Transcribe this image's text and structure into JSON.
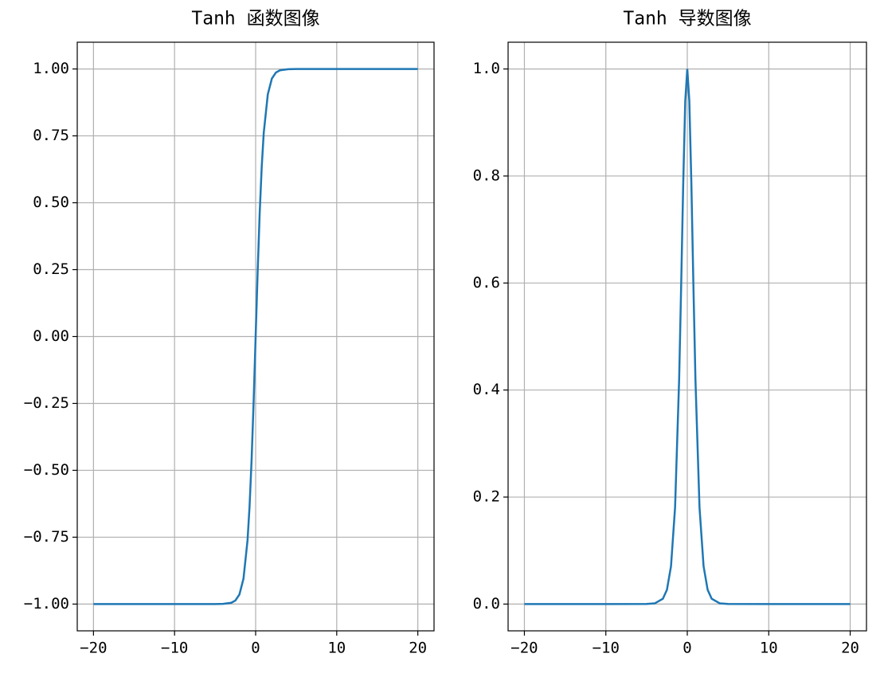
{
  "chart_data": [
    {
      "type": "line",
      "title": "Tanh 函数图像",
      "x": [
        -20,
        -15,
        -10,
        -5,
        -4,
        -3,
        -2.5,
        -2,
        -1.5,
        -1,
        -0.75,
        -0.5,
        -0.25,
        0,
        0.25,
        0.5,
        0.75,
        1,
        1.5,
        2,
        2.5,
        3,
        4,
        5,
        10,
        15,
        20
      ],
      "series": [
        {
          "color": "#1f77b4",
          "values": [
            -1,
            -1,
            -1,
            -0.9999,
            -0.9993,
            -0.9951,
            -0.9866,
            -0.964,
            -0.9051,
            -0.7616,
            -0.6351,
            -0.4621,
            -0.2449,
            0,
            0.2449,
            0.4621,
            0.6351,
            0.7616,
            0.9051,
            0.964,
            0.9866,
            0.9951,
            0.9993,
            0.9999,
            1,
            1,
            1
          ]
        }
      ],
      "xlim": [
        -22,
        22
      ],
      "xticks": [
        {
          "value": -20,
          "label": "−20"
        },
        {
          "value": -10,
          "label": "−10"
        },
        0,
        10,
        20
      ],
      "ylim": [
        -1.1,
        1.1
      ],
      "yticks": [
        {
          "value": -1,
          "label": "−1.00"
        },
        {
          "value": -0.75,
          "label": "−0.75"
        },
        {
          "value": -0.5,
          "label": "−0.50"
        },
        {
          "value": -0.25,
          "label": "−0.25"
        },
        {
          "value": 0,
          "label": "0.00"
        },
        0.25,
        {
          "value": 0.5,
          "label": "0.50"
        },
        0.75,
        {
          "value": 1,
          "label": "1.00"
        }
      ],
      "grid": true
    },
    {
      "type": "line",
      "title": "Tanh 导数图像",
      "x": [
        -20,
        -15,
        -10,
        -5,
        -4,
        -3,
        -2.5,
        -2,
        -1.5,
        -1,
        -0.75,
        -0.5,
        -0.25,
        0,
        0.25,
        0.5,
        0.75,
        1,
        1.5,
        2,
        2.5,
        3,
        4,
        5,
        10,
        15,
        20
      ],
      "series": [
        {
          "color": "#1f77b4",
          "values": [
            0,
            0,
            0,
            0.0002,
            0.0013,
            0.0099,
            0.0266,
            0.0707,
            0.1807,
            0.42,
            0.5967,
            0.7864,
            0.94,
            1,
            0.94,
            0.7864,
            0.5967,
            0.42,
            0.1807,
            0.0707,
            0.0266,
            0.0099,
            0.0013,
            0.0002,
            0,
            0,
            0
          ]
        }
      ],
      "xlim": [
        -22,
        22
      ],
      "xticks": [
        {
          "value": -20,
          "label": "−20"
        },
        {
          "value": -10,
          "label": "−10"
        },
        0,
        10,
        20
      ],
      "ylim": [
        -0.05,
        1.05
      ],
      "yticks": [
        {
          "value": 0,
          "label": "0.0"
        },
        0.2,
        0.4,
        0.6,
        0.8,
        {
          "value": 1,
          "label": "1.0"
        }
      ],
      "grid": true
    }
  ]
}
